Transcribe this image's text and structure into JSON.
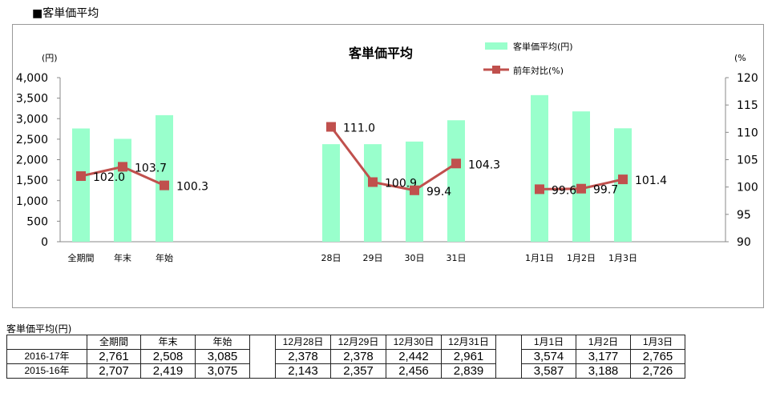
{
  "heading": "■客単価平均",
  "chart_data": {
    "type": "bar+line",
    "title": "客単価平均",
    "categories": [
      "全期間",
      "年末",
      "年始",
      "28日",
      "29日",
      "30日",
      "31日",
      "1月1日",
      "1月2日",
      "1月3日"
    ],
    "slots": [
      0,
      1,
      2,
      6,
      7,
      8,
      9,
      11,
      12,
      13
    ],
    "series": [
      {
        "name": "客単価平均(円)",
        "type": "bar",
        "axis": "left",
        "color": "#99FFCC",
        "values": [
          2761,
          2508,
          3085,
          2378,
          2378,
          2442,
          2961,
          3574,
          3177,
          2765
        ]
      },
      {
        "name": "前年対比(%)",
        "type": "line",
        "axis": "right",
        "color": "#C0504D",
        "values": [
          102.0,
          103.7,
          100.3,
          111.0,
          100.9,
          99.4,
          104.3,
          99.6,
          99.7,
          101.4
        ],
        "labels": [
          "102.0",
          "103.7",
          "100.3",
          "111.0",
          "100.9",
          "99.4",
          "104.3",
          "99.6",
          "99.7",
          "101.4"
        ]
      }
    ],
    "ylabel": "(円)",
    "y2label": "(%",
    "ylim": [
      0,
      4000
    ],
    "yticks": [
      "0",
      "500",
      "1,000",
      "1,500",
      "2,000",
      "2,500",
      "3,000",
      "3,500",
      "4,000"
    ],
    "y2lim": [
      90,
      120
    ],
    "y2ticks": [
      "90",
      "95",
      "100",
      "105",
      "110",
      "115",
      "120"
    ],
    "legend": "top-right"
  },
  "table": {
    "title": "客単価平均(円)",
    "headers": [
      "全期間",
      "年末",
      "年始",
      "12月28日",
      "12月29日",
      "12月30日",
      "12月31日",
      "1月1日",
      "1月2日",
      "1月3日"
    ],
    "rows": [
      {
        "label": "2016-17年",
        "values": [
          "2,761",
          "2,508",
          "3,085",
          "2,378",
          "2,378",
          "2,442",
          "2,961",
          "3,574",
          "3,177",
          "2,765"
        ]
      },
      {
        "label": "2015-16年",
        "values": [
          "2,707",
          "2,419",
          "3,075",
          "2,143",
          "2,357",
          "2,456",
          "2,839",
          "3,587",
          "3,188",
          "2,726"
        ]
      }
    ]
  }
}
